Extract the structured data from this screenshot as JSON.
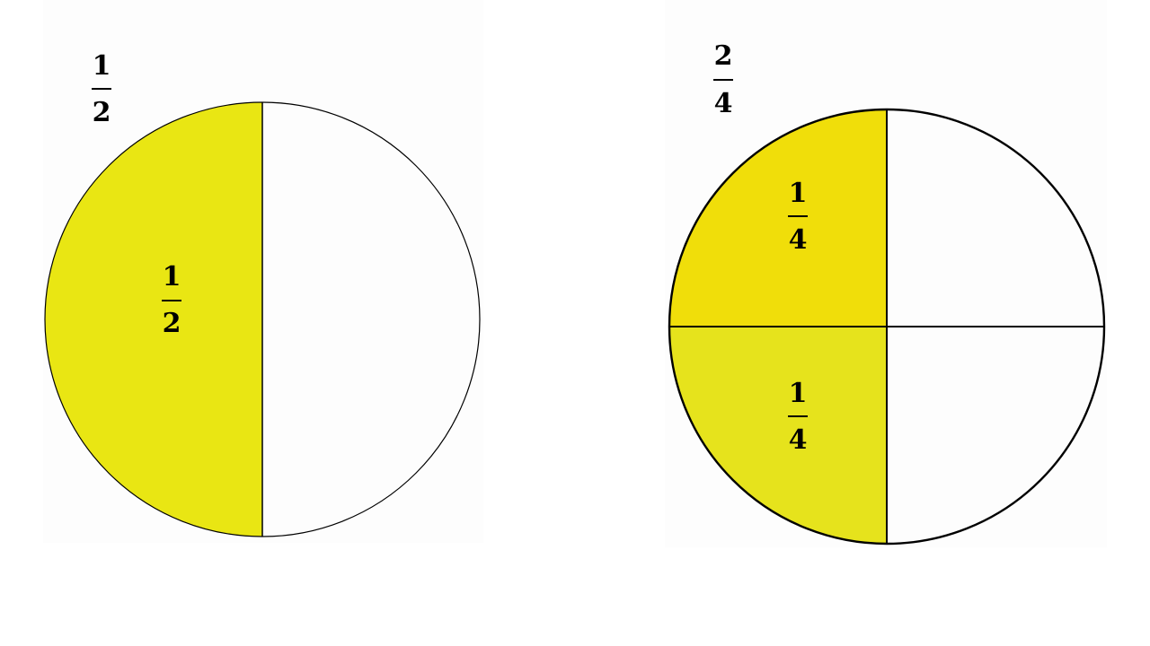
{
  "colors": {
    "yellow_half": "#E9E613",
    "yellow_quarter_top": "#F0DE0A",
    "yellow_quarter_bottom": "#E6E31C",
    "outline": "#000000",
    "panel_bg": "#FDFDFD"
  },
  "left_circle": {
    "title": {
      "numerator": "1",
      "denominator": "2"
    },
    "shaded_label": {
      "numerator": "1",
      "denominator": "2"
    }
  },
  "right_circle": {
    "title": {
      "numerator": "2",
      "denominator": "4"
    },
    "top_left_label": {
      "numerator": "1",
      "denominator": "4"
    },
    "bottom_left_label": {
      "numerator": "1",
      "denominator": "4"
    }
  }
}
